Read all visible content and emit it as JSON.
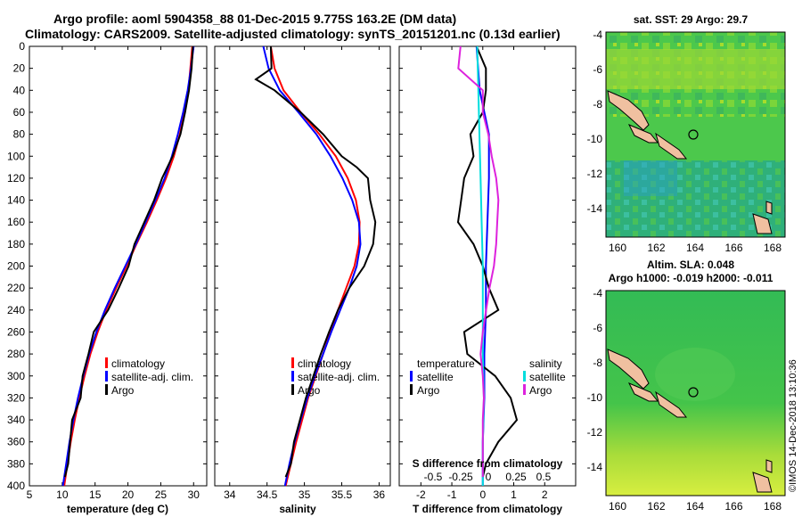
{
  "header": {
    "title_line1": "Argo profile: aoml 5904358_88 01-Dec-2015 9.775S 163.2E (DM data)",
    "title_line2": "Climatology: CARS2009. Satellite-adjusted climatology: synTS_20151201.nc (0.13d earlier)"
  },
  "watermark": "©IMOS 14-Dec-2018 13:10:36",
  "colors": {
    "climatology": "#ff0000",
    "satellite": "#0000ff",
    "argo": "#000000",
    "s_diff": "#dd22dd",
    "s_diff_sat": "#00dddd"
  },
  "depth_axis": {
    "min": 0,
    "max": 400,
    "ticks": [
      0,
      20,
      40,
      60,
      80,
      100,
      120,
      140,
      160,
      180,
      200,
      220,
      240,
      260,
      280,
      300,
      320,
      340,
      360,
      380,
      400
    ]
  },
  "chart_data": [
    {
      "type": "line",
      "name": "temperature",
      "xlabel": "temperature (deg C)",
      "xlim": [
        5,
        32
      ],
      "xticks": [
        5,
        10,
        15,
        20,
        25,
        30
      ],
      "legend": [
        "climatology",
        "satellite-adj. clim.",
        "Argo"
      ],
      "series": [
        {
          "name": "climatology",
          "depth": [
            0,
            20,
            40,
            60,
            80,
            100,
            120,
            140,
            160,
            180,
            200,
            220,
            240,
            260,
            280,
            300,
            320,
            340,
            360,
            380,
            400
          ],
          "values": [
            29.8,
            29.5,
            29.2,
            28.6,
            27.9,
            27.0,
            25.8,
            24.4,
            22.9,
            21.3,
            19.8,
            18.2,
            16.7,
            15.4,
            14.3,
            13.4,
            12.6,
            11.9,
            11.3,
            10.8,
            10.3
          ]
        },
        {
          "name": "satellite-adj. clim.",
          "depth": [
            0,
            20,
            40,
            60,
            80,
            100,
            120,
            140,
            160,
            180,
            200,
            220,
            240,
            260,
            280,
            300,
            320,
            340,
            360,
            380,
            400
          ],
          "values": [
            30.0,
            29.6,
            29.1,
            28.4,
            27.6,
            26.7,
            25.6,
            24.2,
            22.7,
            21.2,
            19.6,
            18.0,
            16.5,
            15.2,
            14.1,
            13.2,
            12.4,
            11.7,
            11.1,
            10.6,
            10.1
          ]
        },
        {
          "name": "Argo",
          "depth": [
            0,
            20,
            40,
            60,
            80,
            100,
            120,
            140,
            160,
            180,
            200,
            220,
            240,
            260,
            280,
            300,
            320,
            340,
            360,
            380,
            392
          ],
          "values": [
            29.9,
            29.7,
            29.3,
            28.7,
            28.0,
            26.8,
            25.2,
            24.0,
            22.5,
            21.0,
            20.1,
            18.6,
            17.0,
            14.8,
            14.0,
            13.1,
            12.8,
            11.5,
            11.2,
            10.9,
            10.4
          ]
        }
      ]
    },
    {
      "type": "line",
      "name": "salinity",
      "xlabel": "salinity",
      "xlim": [
        33.8,
        36.15
      ],
      "xticks": [
        34,
        34.5,
        35,
        35.5,
        36
      ],
      "legend": [
        "climatology",
        "satellite-adj. clim.",
        "Argo"
      ],
      "series": [
        {
          "name": "climatology",
          "depth": [
            0,
            20,
            40,
            60,
            80,
            100,
            120,
            140,
            160,
            180,
            200,
            220,
            240,
            260,
            280,
            300,
            320,
            340,
            360,
            380,
            400
          ],
          "values": [
            34.55,
            34.6,
            34.72,
            34.95,
            35.2,
            35.42,
            35.58,
            35.69,
            35.74,
            35.73,
            35.67,
            35.56,
            35.45,
            35.35,
            35.25,
            35.15,
            35.05,
            34.97,
            34.89,
            34.82,
            34.75
          ]
        },
        {
          "name": "satellite-adj. clim.",
          "depth": [
            0,
            20,
            40,
            60,
            80,
            100,
            120,
            140,
            160,
            180,
            200,
            220,
            240,
            260,
            280,
            300,
            320,
            340,
            360,
            380,
            400
          ],
          "values": [
            34.45,
            34.52,
            34.67,
            34.92,
            35.16,
            35.35,
            35.51,
            35.64,
            35.73,
            35.75,
            35.7,
            35.6,
            35.48,
            35.36,
            35.25,
            35.14,
            35.04,
            34.95,
            34.87,
            34.8,
            34.74
          ]
        },
        {
          "name": "Argo",
          "depth": [
            0,
            20,
            30,
            40,
            60,
            80,
            100,
            110,
            120,
            140,
            160,
            180,
            200,
            220,
            240,
            260,
            280,
            300,
            320,
            340,
            360,
            380,
            392
          ],
          "values": [
            34.55,
            34.56,
            34.35,
            34.6,
            34.95,
            35.25,
            35.5,
            35.7,
            35.85,
            35.88,
            35.95,
            35.92,
            35.8,
            35.6,
            35.45,
            35.33,
            35.22,
            35.12,
            35.02,
            34.94,
            34.86,
            34.82,
            34.75
          ]
        }
      ]
    },
    {
      "type": "line",
      "name": "differences",
      "xlabel": "T difference from climatology",
      "xlim": [
        -2.7,
        3.0
      ],
      "xticks": [
        -2,
        -1,
        0,
        1,
        2
      ],
      "top_axis_label": "S difference from climatology",
      "top_ticks": [
        "-0.5",
        "-0.25",
        "0",
        "0.25",
        "0.5"
      ],
      "legend_temperature": [
        "temperature",
        "satellite",
        "Argo"
      ],
      "legend_salinity": [
        "salinity",
        "satellite",
        "Argo"
      ],
      "series": [
        {
          "name": "T satellite",
          "depth": [
            0,
            40,
            80,
            120,
            160,
            200,
            240,
            280,
            320,
            360,
            400
          ],
          "values": [
            -0.2,
            -0.1,
            0.2,
            0.2,
            0.15,
            0.1,
            0.1,
            0.05,
            0.05,
            0.0,
            0.0
          ]
        },
        {
          "name": "T Argo",
          "depth": [
            0,
            20,
            40,
            60,
            80,
            100,
            120,
            140,
            160,
            180,
            200,
            220,
            240,
            260,
            280,
            300,
            320,
            340,
            360,
            380,
            392
          ],
          "values": [
            -0.2,
            0.1,
            0.1,
            0.0,
            -0.4,
            -0.3,
            -0.6,
            -0.7,
            -0.8,
            -0.3,
            0.0,
            0.2,
            0.5,
            -0.6,
            -0.5,
            0.4,
            0.9,
            1.1,
            0.5,
            0.1,
            0.0
          ]
        },
        {
          "name": "S satellite",
          "depth": [
            0,
            40,
            80,
            120,
            160,
            200,
            240,
            280,
            320,
            360,
            400
          ],
          "values": [
            -0.05,
            -0.04,
            -0.03,
            -0.02,
            -0.01,
            0.0,
            0.0,
            0.0,
            0.01,
            0.0,
            0.0
          ]
        },
        {
          "name": "S Argo",
          "depth": [
            0,
            20,
            40,
            60,
            80,
            100,
            120,
            140,
            160,
            180,
            200,
            220,
            240,
            260,
            280,
            300,
            320,
            340,
            360,
            380,
            392
          ],
          "values": [
            -0.2,
            -0.22,
            0.0,
            0.0,
            0.05,
            0.08,
            0.12,
            0.14,
            0.13,
            0.12,
            0.1,
            0.06,
            0.03,
            0.0,
            -0.02,
            0.0,
            0.01,
            0.0,
            0.0,
            0.0,
            0.0
          ]
        }
      ]
    }
  ],
  "map_sst": {
    "title": "sat. SST: 29 Argo: 29.7",
    "xticks": [
      "160",
      "162",
      "164",
      "166",
      "168"
    ],
    "yticks": [
      "-4",
      "-6",
      "-8",
      "-10",
      "-12",
      "-14"
    ]
  },
  "map_sla": {
    "title_line1": "Altim. SLA: 0.048",
    "title_line2": "Argo h1000: -0.019 h2000: -0.011",
    "xticks": [
      "160",
      "162",
      "164",
      "166",
      "168"
    ],
    "yticks": [
      "-4",
      "-6",
      "-8",
      "-10",
      "-12",
      "-14"
    ]
  }
}
